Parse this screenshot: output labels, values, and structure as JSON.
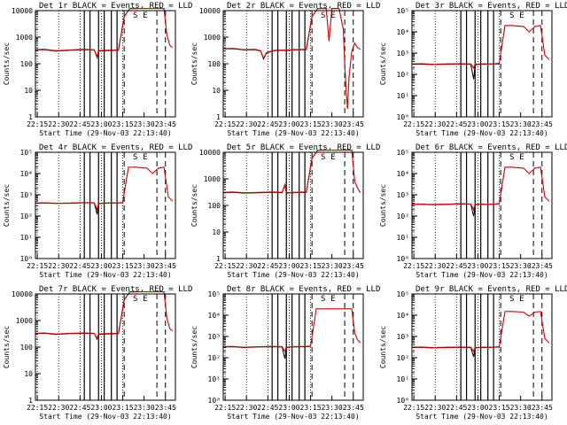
{
  "shared": {
    "xlabel": "Start Time (29-Nov-03 22:13:40)",
    "ylabel": "Counts/sec",
    "x_tick_labels": [
      "22:15",
      "22:30",
      "22:45",
      "23:00",
      "23:15",
      "23:30",
      "23:45"
    ],
    "x_tick_minutes": [
      15,
      30,
      45,
      60,
      75,
      90,
      105
    ],
    "x_range_minutes": [
      13.67,
      112
    ],
    "legend_markers": [
      "S",
      "E"
    ],
    "colors": {
      "events": "#000000",
      "lld": "#cc0000",
      "axes": "#000000",
      "background": "#ffffff"
    }
  },
  "chart_data": [
    {
      "type": "line",
      "title": "Det 1r BLACK = Events, RED = LLD",
      "ylog": true,
      "ylim": [
        1,
        10000
      ],
      "y_tick_labels": [
        "1",
        "10",
        "100",
        "1000",
        "10000"
      ],
      "series": [
        {
          "name": "Events",
          "x": [
            14,
            20,
            28,
            38,
            48,
            55,
            57,
            58,
            62,
            72,
            76,
            80,
            83,
            85
          ],
          "y": [
            330,
            340,
            300,
            320,
            340,
            330,
            170,
            300,
            310,
            320,
            6000,
            12000,
            12000,
            12000
          ]
        },
        {
          "name": "LLD",
          "x": [
            14,
            20,
            28,
            38,
            48,
            55,
            57,
            58,
            62,
            72,
            76,
            80,
            83,
            85,
            92,
            104,
            106,
            108,
            110
          ],
          "y": [
            340,
            350,
            310,
            330,
            350,
            340,
            180,
            310,
            320,
            330,
            6000,
            12000,
            12000,
            12000,
            12000,
            12000,
            1200,
            500,
            400
          ]
        }
      ]
    },
    {
      "type": "line",
      "title": "Det 2r BLACK = Events, RED = LLD",
      "ylog": true,
      "ylim": [
        1,
        10000
      ],
      "y_tick_labels": [
        "1",
        "10",
        "100",
        "1000",
        "10000"
      ],
      "series": [
        {
          "name": "Events",
          "x": [
            14,
            20,
            28,
            36,
            40,
            42,
            44,
            48,
            52,
            58,
            62,
            72,
            76,
            80,
            84,
            86
          ],
          "y": [
            360,
            370,
            330,
            340,
            300,
            150,
            250,
            300,
            320,
            310,
            330,
            340,
            6000,
            12000,
            12000,
            12000
          ]
        },
        {
          "name": "LLD",
          "x": [
            14,
            20,
            28,
            36,
            40,
            42,
            44,
            48,
            52,
            58,
            62,
            72,
            76,
            80,
            84,
            86,
            88,
            90,
            92,
            95,
            98,
            99,
            100,
            101,
            102,
            103,
            104,
            106,
            108,
            110
          ],
          "y": [
            370,
            380,
            340,
            350,
            310,
            160,
            260,
            310,
            330,
            320,
            340,
            350,
            6000,
            12000,
            12000,
            12000,
            700,
            12000,
            12000,
            12000,
            2000,
            100,
            10,
            2,
            30,
            100,
            300,
            600,
            400,
            350
          ]
        }
      ]
    },
    {
      "type": "line",
      "title": "Det 3r BLACK = Events, RED = LLD",
      "ylog": true,
      "ylim": [
        1,
        100000
      ],
      "y_tick_labels": [
        "10⁰",
        "10¹",
        "10²",
        "10³",
        "10⁴",
        "10⁵"
      ],
      "series": [
        {
          "name": "Events",
          "x": [
            14,
            20,
            28,
            38,
            48,
            55,
            57,
            58,
            62,
            72,
            75
          ],
          "y": [
            300,
            300,
            290,
            300,
            310,
            300,
            60,
            280,
            300,
            310,
            310
          ]
        },
        {
          "name": "LLD",
          "x": [
            14,
            20,
            28,
            38,
            48,
            55,
            57,
            58,
            62,
            72,
            75,
            79,
            84,
            92,
            96,
            100,
            104,
            107,
            110
          ],
          "y": [
            310,
            320,
            300,
            310,
            320,
            310,
            200,
            300,
            310,
            320,
            330,
            20000,
            20000,
            18000,
            10000,
            18000,
            20000,
            800,
            500
          ]
        }
      ]
    },
    {
      "type": "line",
      "title": "Det 4r BLACK = Events, RED = LLD",
      "ylog": true,
      "ylim": [
        1,
        100000
      ],
      "y_tick_labels": [
        "10⁰",
        "10¹",
        "10²",
        "10³",
        "10⁴",
        "10⁵"
      ],
      "series": [
        {
          "name": "Events",
          "x": [
            14,
            20,
            28,
            38,
            48,
            55,
            57,
            58,
            62,
            72,
            75
          ],
          "y": [
            400,
            410,
            390,
            400,
            420,
            410,
            120,
            380,
            400,
            410,
            420
          ]
        },
        {
          "name": "LLD",
          "x": [
            14,
            20,
            28,
            38,
            48,
            55,
            57,
            58,
            62,
            72,
            75,
            79,
            84,
            92,
            96,
            100,
            104,
            107,
            110
          ],
          "y": [
            410,
            420,
            400,
            410,
            430,
            420,
            200,
            390,
            410,
            420,
            430,
            20000,
            20000,
            18000,
            10000,
            18000,
            20000,
            800,
            500
          ]
        }
      ]
    },
    {
      "type": "line",
      "title": "Det 5r BLACK = Events, RED = LLD",
      "ylog": true,
      "ylim": [
        1,
        10000
      ],
      "y_tick_labels": [
        "1",
        "10",
        "100",
        "1000",
        "10000"
      ],
      "series": [
        {
          "name": "Events",
          "x": [
            14,
            20,
            28,
            38,
            48,
            55,
            57,
            58,
            62,
            72,
            76,
            80,
            83,
            85
          ],
          "y": [
            300,
            310,
            290,
            300,
            310,
            300,
            600,
            290,
            300,
            310,
            6000,
            12000,
            12000,
            12000
          ]
        },
        {
          "name": "LLD",
          "x": [
            14,
            20,
            28,
            38,
            48,
            55,
            57,
            58,
            62,
            72,
            76,
            80,
            83,
            85,
            92,
            104,
            106,
            108,
            110
          ],
          "y": [
            310,
            320,
            300,
            310,
            320,
            310,
            600,
            300,
            310,
            320,
            6000,
            12000,
            12000,
            12000,
            12000,
            12000,
            800,
            450,
            300
          ]
        }
      ]
    },
    {
      "type": "line",
      "title": "Det 6r BLACK = Events, RED = LLD",
      "ylog": true,
      "ylim": [
        1,
        100000
      ],
      "y_tick_labels": [
        "10⁰",
        "10¹",
        "10²",
        "10³",
        "10⁴",
        "10⁵"
      ],
      "series": [
        {
          "name": "Events",
          "x": [
            14,
            20,
            28,
            38,
            48,
            55,
            57,
            58,
            62,
            72,
            75
          ],
          "y": [
            350,
            360,
            340,
            350,
            370,
            360,
            100,
            340,
            350,
            360,
            370
          ]
        },
        {
          "name": "LLD",
          "x": [
            14,
            20,
            28,
            38,
            48,
            55,
            57,
            58,
            62,
            72,
            75,
            79,
            84,
            92,
            96,
            100,
            104,
            107,
            110
          ],
          "y": [
            360,
            370,
            350,
            360,
            380,
            370,
            200,
            350,
            360,
            370,
            380,
            20000,
            20000,
            18000,
            10000,
            18000,
            20000,
            800,
            500
          ]
        }
      ]
    },
    {
      "type": "line",
      "title": "Det 7r BLACK = Events, RED = LLD",
      "ylog": true,
      "ylim": [
        1,
        10000
      ],
      "y_tick_labels": [
        "1",
        "10",
        "100",
        "1000",
        "10000"
      ],
      "series": [
        {
          "name": "Events",
          "x": [
            14,
            20,
            28,
            38,
            48,
            55,
            57,
            58,
            62,
            72,
            76,
            80,
            83,
            85
          ],
          "y": [
            320,
            330,
            300,
            320,
            330,
            320,
            200,
            300,
            310,
            320,
            6000,
            12000,
            12000,
            12000
          ]
        },
        {
          "name": "LLD",
          "x": [
            14,
            20,
            28,
            38,
            48,
            55,
            57,
            58,
            62,
            72,
            76,
            80,
            83,
            85,
            92,
            104,
            106,
            108,
            110
          ],
          "y": [
            330,
            340,
            310,
            330,
            340,
            330,
            210,
            310,
            320,
            330,
            6000,
            12000,
            12000,
            12000,
            12000,
            12000,
            1200,
            500,
            400
          ]
        }
      ]
    },
    {
      "type": "line",
      "title": "Det 8r BLACK = Events, RED = LLD",
      "ylog": true,
      "ylim": [
        1,
        100000
      ],
      "y_tick_labels": [
        "10⁰",
        "10¹",
        "10²",
        "10³",
        "10⁴",
        "10⁵"
      ],
      "series": [
        {
          "name": "Events",
          "x": [
            14,
            20,
            28,
            38,
            48,
            55,
            57,
            58,
            62,
            72,
            75
          ],
          "y": [
            320,
            330,
            300,
            320,
            330,
            320,
            90,
            300,
            320,
            330,
            340
          ]
        },
        {
          "name": "LLD",
          "x": [
            14,
            20,
            28,
            38,
            48,
            55,
            57,
            58,
            62,
            72,
            75,
            79,
            85,
            95,
            104,
            106,
            108,
            110
          ],
          "y": [
            330,
            340,
            310,
            330,
            340,
            330,
            200,
            310,
            330,
            340,
            350,
            20000,
            20000,
            20000,
            20000,
            1500,
            700,
            500
          ]
        }
      ]
    },
    {
      "type": "line",
      "title": "Det 9r BLACK = Events, RED = LLD",
      "ylog": true,
      "ylim": [
        1,
        100000
      ],
      "y_tick_labels": [
        "10⁰",
        "10¹",
        "10²",
        "10³",
        "10⁴",
        "10⁵"
      ],
      "series": [
        {
          "name": "Events",
          "x": [
            14,
            20,
            28,
            38,
            48,
            55,
            57,
            58,
            62,
            72,
            75
          ],
          "y": [
            300,
            310,
            290,
            300,
            310,
            300,
            110,
            290,
            300,
            310,
            320
          ]
        },
        {
          "name": "LLD",
          "x": [
            14,
            20,
            28,
            38,
            48,
            55,
            57,
            58,
            62,
            72,
            75,
            79,
            84,
            92,
            96,
            100,
            104,
            107,
            110
          ],
          "y": [
            310,
            320,
            300,
            310,
            320,
            310,
            200,
            300,
            310,
            320,
            330,
            15000,
            15000,
            14000,
            9000,
            14000,
            15000,
            800,
            500
          ]
        }
      ]
    }
  ]
}
